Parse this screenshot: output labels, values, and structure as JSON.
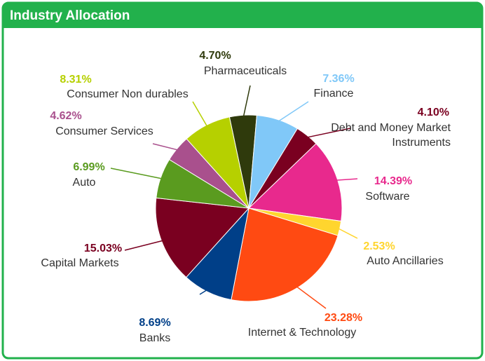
{
  "chart_data": {
    "type": "pie",
    "title": "Industry Allocation",
    "categories": [
      "Pharmaceuticals",
      "Finance",
      "Debt and Money Market Instruments",
      "Software",
      "Auto Ancillaries",
      "Internet & Technology",
      "Banks",
      "Capital Markets",
      "Auto",
      "Consumer Services",
      "Consumer Non durables"
    ],
    "values": [
      4.7,
      7.36,
      4.1,
      14.39,
      2.53,
      23.28,
      8.69,
      15.03,
      6.99,
      4.62,
      8.31
    ],
    "value_labels": [
      "4.70%",
      "7.36%",
      "4.10%",
      "14.39%",
      "2.53%",
      "23.28%",
      "8.69%",
      "15.03%",
      "6.99%",
      "4.62%",
      "8.31%"
    ],
    "colors": [
      "#2f3a0c",
      "#80c8f8",
      "#7a0020",
      "#e8298d",
      "#ffd52e",
      "#ff4a12",
      "#003f88",
      "#7a0020",
      "#5a9b1f",
      "#a9508d",
      "#b6d000"
    ]
  }
}
